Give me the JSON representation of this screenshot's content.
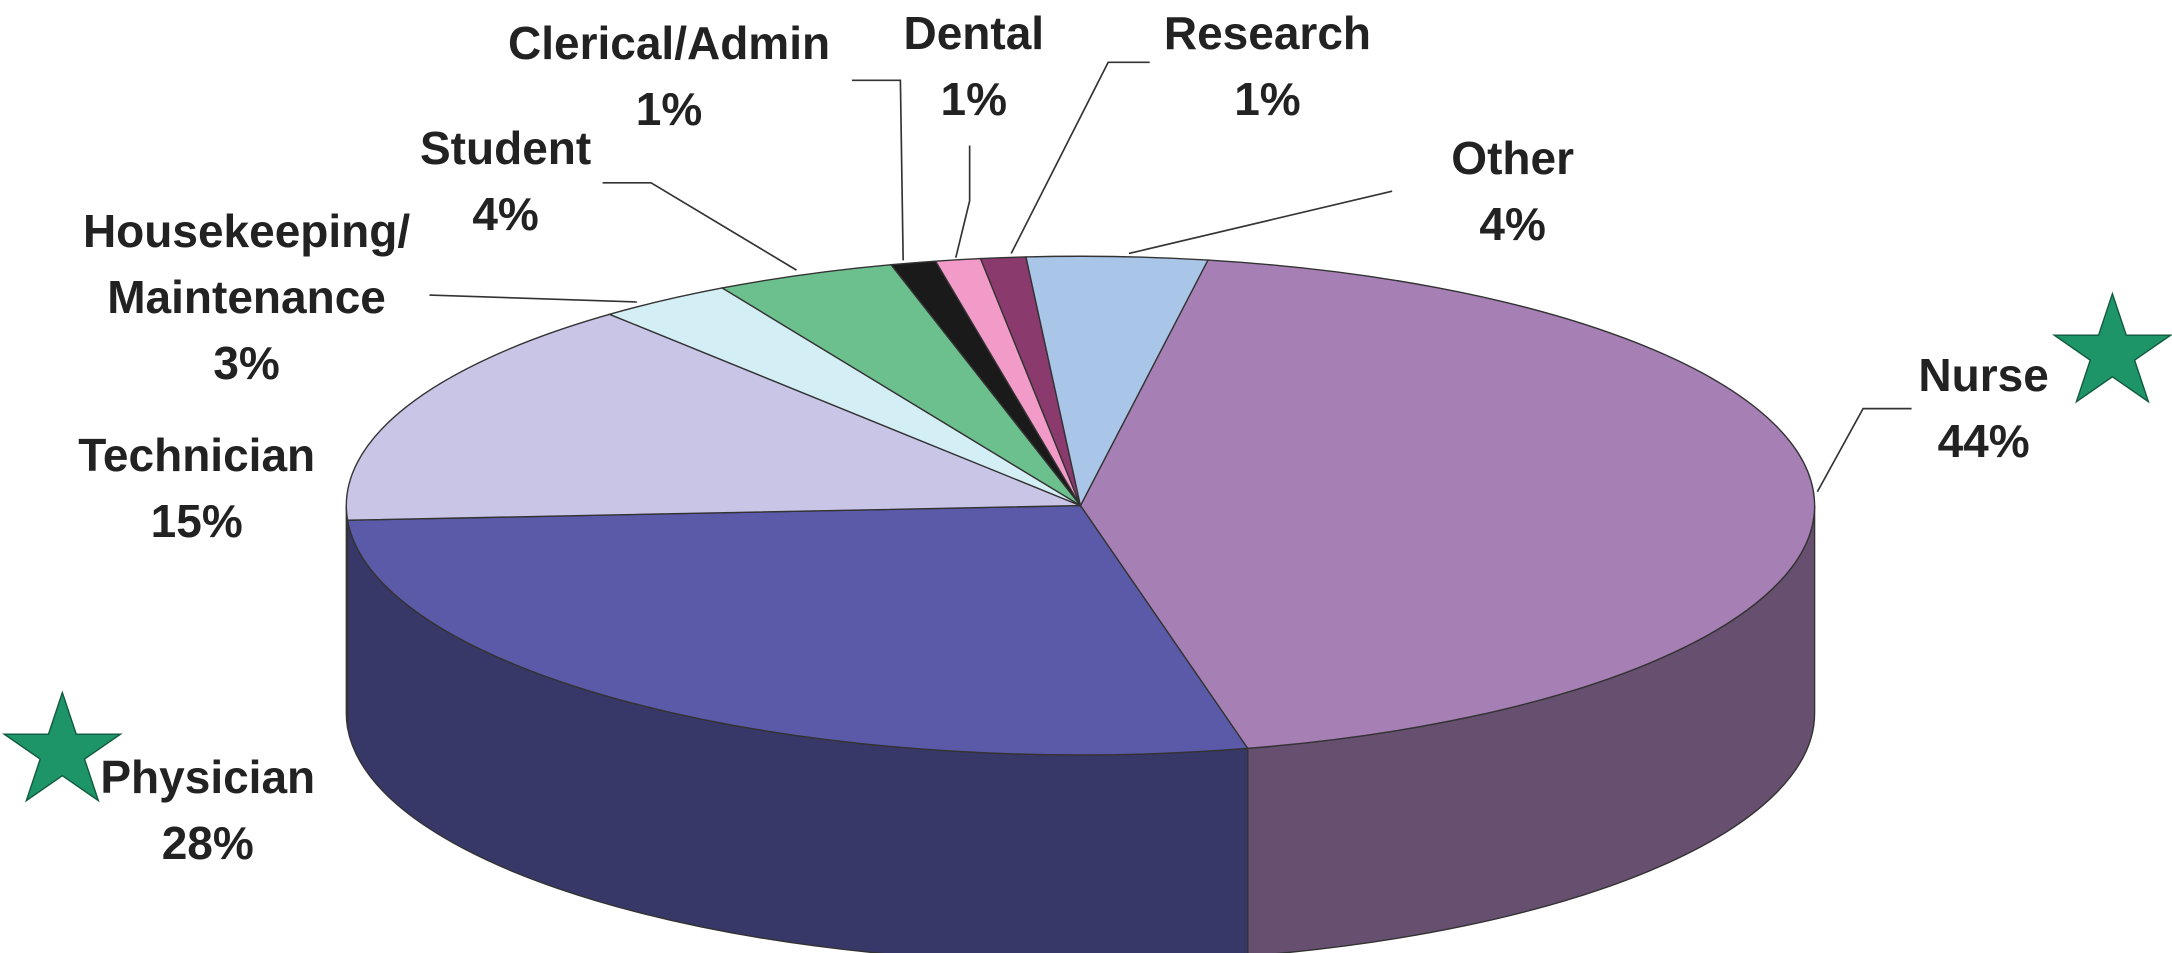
{
  "chart_data": {
    "type": "pie3d",
    "categories": [
      "Nurse",
      "Physician",
      "Technician",
      "Housekeeping/\nMaintenance",
      "Student",
      "Clerical/Admin",
      "Dental",
      "Research",
      "Other"
    ],
    "values": [
      44,
      28,
      15,
      3,
      4,
      1,
      1,
      1,
      4
    ],
    "value_labels": [
      "44%",
      "28%",
      "15%",
      "3%",
      "4%",
      "1%",
      "1%",
      "1%",
      "4%"
    ],
    "colors": [
      "#a67fb5",
      "#5a5aa8",
      "#c9c5e6",
      "#d3eef5",
      "#6cc08e",
      "#1a1a1a",
      "#f29ac8",
      "#8b3a6e",
      "#a9c6e8"
    ]
  }
}
